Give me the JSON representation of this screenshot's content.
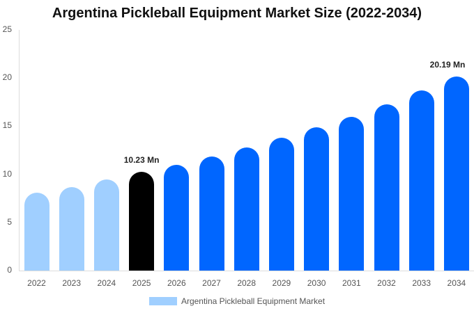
{
  "chart_data": {
    "type": "bar",
    "title": "Argentina Pickleball Equipment Market Size (2022-2034)",
    "xlabel": "",
    "ylabel": "",
    "ylim": [
      0,
      25
    ],
    "yticks": [
      0,
      5,
      10,
      15,
      20,
      25
    ],
    "grid": false,
    "legend_position": "bottom",
    "categories": [
      "2022",
      "2023",
      "2024",
      "2025",
      "2026",
      "2027",
      "2028",
      "2029",
      "2030",
      "2031",
      "2032",
      "2033",
      "2034"
    ],
    "series": [
      {
        "name": "Argentina Pickleball Equipment Market",
        "values": [
          8.1,
          8.7,
          9.5,
          10.23,
          11.0,
          11.85,
          12.8,
          13.8,
          14.9,
          16.0,
          17.3,
          18.7,
          20.19
        ]
      }
    ],
    "bar_colors": [
      "#a0cfff",
      "#a0cfff",
      "#a0cfff",
      "#000000",
      "#0066ff",
      "#0066ff",
      "#0066ff",
      "#0066ff",
      "#0066ff",
      "#0066ff",
      "#0066ff",
      "#0066ff",
      "#0066ff"
    ],
    "annotations": [
      {
        "category": "2025",
        "text": "10.23 Mn"
      },
      {
        "category": "2034",
        "text": "20.19 Mn"
      }
    ]
  },
  "legend": {
    "label": "Argentina Pickleball Equipment Market",
    "color": "#a0cfff"
  }
}
